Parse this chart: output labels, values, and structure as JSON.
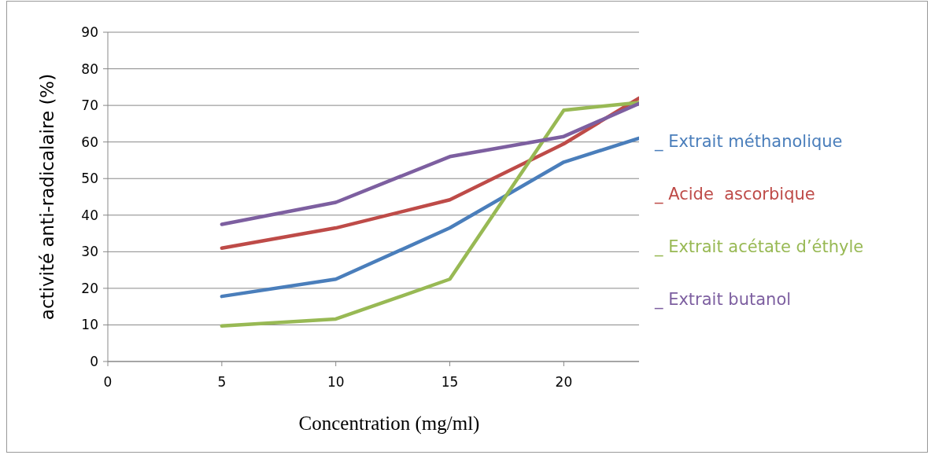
{
  "chart_data": {
    "type": "line",
    "xlabel": "Concentration (mg/ml)",
    "ylabel": "activité anti-radicalaire (%)",
    "x": [
      5,
      10,
      15,
      20,
      23.3
    ],
    "xlim": [
      0,
      23.3
    ],
    "xticks": [
      0,
      5,
      10,
      15,
      20
    ],
    "ylim": [
      0,
      90
    ],
    "yticks": [
      0,
      10,
      20,
      30,
      40,
      50,
      60,
      70,
      80,
      90
    ],
    "grid": "y",
    "legend": "right",
    "marker": "none",
    "line_style": "solid",
    "series": [
      {
        "name": "_ Extrait méthanolique",
        "color": "#4a7ebb",
        "values": [
          17.8,
          22.5,
          36.5,
          54.5,
          61
        ]
      },
      {
        "name": "_ Acide  ascorbique",
        "color": "#be4b48",
        "values": [
          31,
          36.5,
          44.2,
          59.5,
          72
        ]
      },
      {
        "name": "_ Extrait acétate d’éthyle",
        "color": "#98b954",
        "values": [
          9.7,
          11.6,
          22.5,
          68.7,
          70.8
        ]
      },
      {
        "name": "_ Extrait butanol",
        "color": "#7d5fa0",
        "values": [
          37.5,
          43.5,
          56,
          61.5,
          70.5
        ]
      }
    ]
  }
}
